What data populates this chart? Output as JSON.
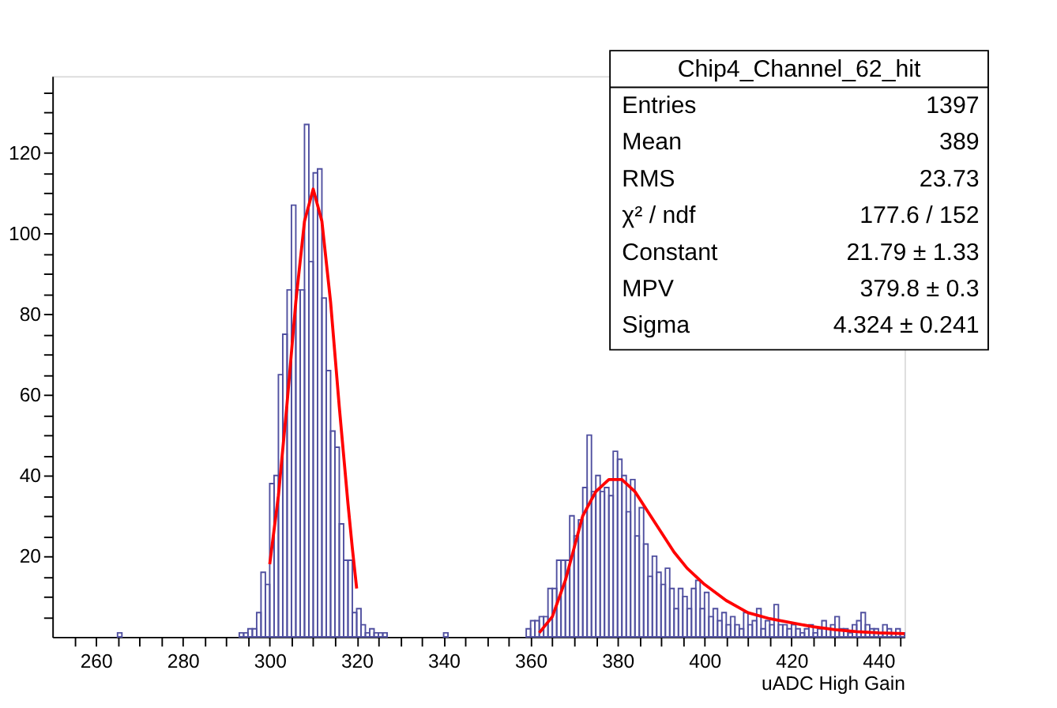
{
  "chart_data": {
    "type": "histogram",
    "xlabel": "uADC High Gain",
    "color": "#5050a0",
    "bins": [
      250,
      251,
      252,
      253,
      254,
      255,
      256,
      257,
      258,
      259,
      260,
      261,
      262,
      263,
      264,
      265,
      266,
      267,
      268,
      269,
      270,
      271,
      272,
      273,
      274,
      275,
      276,
      277,
      278,
      279,
      280,
      281,
      282,
      283,
      284,
      285,
      286,
      287,
      288,
      289,
      290,
      291,
      292,
      293,
      294,
      295,
      296,
      297,
      298,
      299,
      300,
      301,
      302,
      303,
      304,
      305,
      306,
      307,
      308,
      309,
      310,
      311,
      312,
      313,
      314,
      315,
      316,
      317,
      318,
      319,
      320,
      321,
      322,
      323,
      324,
      325,
      326,
      327,
      328,
      329,
      330,
      331,
      332,
      333,
      334,
      335,
      336,
      337,
      338,
      339,
      340,
      341,
      342,
      343,
      344,
      345,
      346,
      347,
      348,
      349,
      350,
      351,
      352,
      353,
      354,
      355,
      356,
      357,
      358,
      359,
      360,
      361,
      362,
      363,
      364,
      365,
      366,
      367,
      368,
      369,
      370,
      371,
      372,
      373,
      374,
      375,
      376,
      377,
      378,
      379,
      380,
      381,
      382,
      383,
      384,
      385,
      386,
      387,
      388,
      389,
      390,
      391,
      392,
      393,
      394,
      395,
      396,
      397,
      398,
      399,
      400,
      401,
      402,
      403,
      404,
      405,
      406,
      407,
      408,
      409,
      410,
      411,
      412,
      413,
      414,
      415,
      416,
      417,
      418,
      419,
      420,
      421,
      422,
      423,
      424,
      425,
      426,
      427,
      428,
      429,
      430,
      431,
      432,
      433,
      434,
      435,
      436,
      437,
      438,
      439,
      440,
      441,
      442,
      443,
      444,
      445,
      446
    ],
    "values": [
      0,
      0,
      0,
      0,
      0,
      0,
      0,
      0,
      0,
      0,
      0,
      0,
      0,
      0,
      0,
      1,
      0,
      0,
      0,
      0,
      0,
      0,
      0,
      0,
      0,
      0,
      0,
      0,
      0,
      0,
      0,
      0,
      0,
      0,
      0,
      0,
      0,
      0,
      0,
      0,
      0,
      0,
      0,
      1,
      1,
      2,
      2,
      6,
      16,
      13,
      38,
      40,
      65,
      75,
      86,
      107,
      86,
      86,
      127,
      93,
      115,
      116,
      84,
      66,
      51,
      47,
      28,
      19,
      19,
      6,
      7,
      3,
      1,
      2,
      1,
      1,
      1,
      0,
      0,
      0,
      0,
      0,
      0,
      0,
      0,
      0,
      0,
      0,
      0,
      0,
      1,
      0,
      0,
      0,
      0,
      0,
      0,
      0,
      0,
      0,
      0,
      0,
      0,
      0,
      0,
      0,
      0,
      0,
      0,
      2,
      4,
      4,
      5,
      5,
      12,
      12,
      19,
      19,
      19,
      30,
      25,
      29,
      37,
      50,
      36,
      40,
      36,
      37,
      35,
      46,
      44,
      40,
      31,
      39,
      25,
      32,
      23,
      15,
      20,
      16,
      13,
      17,
      12,
      7,
      12,
      10,
      7,
      12,
      14,
      7,
      11,
      5,
      7,
      4,
      6,
      3,
      5,
      3,
      2,
      6,
      3,
      4,
      7,
      2,
      4,
      3,
      8,
      3,
      3,
      2,
      3,
      2,
      1,
      2,
      3,
      1,
      2,
      4,
      2,
      3,
      5,
      2,
      2,
      1,
      3,
      4,
      6,
      3,
      2,
      2,
      1,
      3,
      2,
      1,
      2,
      1
    ],
    "series": [
      {
        "type": "line",
        "color": "#ff0000",
        "x": [
          300,
          302,
          304,
          306,
          308,
          310,
          312,
          314,
          316,
          318,
          319,
          320
        ],
        "values": [
          18,
          35,
          58,
          83,
          103,
          111,
          103,
          83,
          57,
          33,
          22,
          12
        ]
      },
      {
        "type": "line",
        "color": "#ff0000",
        "x": [
          362,
          365,
          368,
          370,
          372,
          375,
          378,
          381,
          384,
          387,
          390,
          393,
          396,
          400,
          405,
          410,
          415,
          420,
          425,
          430,
          435,
          440,
          446
        ],
        "values": [
          1,
          5,
          14,
          22,
          30,
          36,
          39,
          39,
          36,
          31,
          26,
          21,
          17,
          13,
          9,
          6,
          4.5,
          3.5,
          2.5,
          1.8,
          1.3,
          1,
          0.8
        ]
      }
    ],
    "xlim": [
      250,
      446
    ],
    "ylim": [
      0,
      139
    ],
    "xticks": [
      {
        "value": 255,
        "label": null
      },
      260,
      {
        "value": 265,
        "label": null
      },
      {
        "value": 270,
        "label": null
      },
      {
        "value": 275,
        "label": null
      },
      280,
      {
        "value": 285,
        "label": null
      },
      {
        "value": 290,
        "label": null
      },
      {
        "value": 295,
        "label": null
      },
      300,
      {
        "value": 305,
        "label": null
      },
      {
        "value": 310,
        "label": null
      },
      {
        "value": 315,
        "label": null
      },
      320,
      {
        "value": 325,
        "label": null
      },
      {
        "value": 330,
        "label": null
      },
      {
        "value": 335,
        "label": null
      },
      340,
      {
        "value": 345,
        "label": null
      },
      {
        "value": 350,
        "label": null
      },
      {
        "value": 355,
        "label": null
      },
      360,
      {
        "value": 365,
        "label": null
      },
      {
        "value": 370,
        "label": null
      },
      {
        "value": 375,
        "label": null
      },
      380,
      {
        "value": 385,
        "label": null
      },
      {
        "value": 390,
        "label": null
      },
      {
        "value": 395,
        "label": null
      },
      400,
      {
        "value": 405,
        "label": null
      },
      {
        "value": 410,
        "label": null
      },
      {
        "value": 415,
        "label": null
      },
      420,
      {
        "value": 425,
        "label": null
      },
      {
        "value": 430,
        "label": null
      },
      {
        "value": 435,
        "label": null
      },
      440,
      {
        "value": 445,
        "label": null
      }
    ],
    "yticks": [
      {
        "value": 5,
        "label": null
      },
      {
        "value": 10,
        "label": null
      },
      {
        "value": 15,
        "label": null
      },
      20,
      {
        "value": 25,
        "label": null
      },
      {
        "value": 30,
        "label": null
      },
      {
        "value": 35,
        "label": null
      },
      40,
      {
        "value": 45,
        "label": null
      },
      {
        "value": 50,
        "label": null
      },
      {
        "value": 55,
        "label": null
      },
      60,
      {
        "value": 65,
        "label": null
      },
      {
        "value": 70,
        "label": null
      },
      {
        "value": 75,
        "label": null
      },
      80,
      {
        "value": 85,
        "label": null
      },
      {
        "value": 90,
        "label": null
      },
      {
        "value": 95,
        "label": null
      },
      100,
      {
        "value": 105,
        "label": null
      },
      {
        "value": 110,
        "label": null
      },
      {
        "value": 115,
        "label": null
      },
      120,
      {
        "value": 125,
        "label": null
      },
      {
        "value": 130,
        "label": null
      },
      {
        "value": 135,
        "label": null
      }
    ],
    "grid": false,
    "annotations": [
      "Chip4_Channel_62_hit",
      "Entries\t1397",
      "Mean\t389",
      "RMS\t23.73",
      "χ² / ndf\t177.6 / 152",
      "Constant\t21.79 ± 1.33",
      "MPV\t379.8 ± 0.3",
      "Sigma\t4.324 ± 0.241"
    ]
  }
}
